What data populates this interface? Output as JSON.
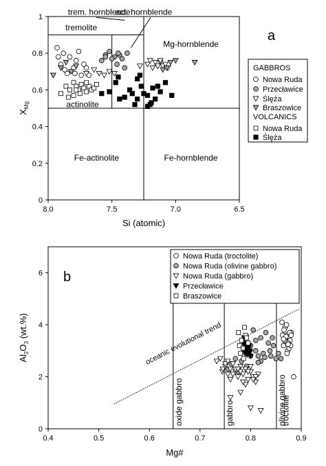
{
  "chart_data": [
    {
      "type": "scatter",
      "panel_label": "a",
      "xlabel": "Si (atomic)",
      "ylabel": "X",
      "ylabel_sub": "Mg",
      "xlim": [
        8.0,
        6.5
      ],
      "ylim": [
        0,
        1
      ],
      "x_ticks": [
        "8.0",
        "7.5",
        "7.0",
        "6.5"
      ],
      "y_ticks": [
        "0",
        "0.2",
        "0.4",
        "0.6",
        "0.8",
        "1"
      ],
      "x_tick_values": [
        8.0,
        7.5,
        7.0,
        6.5
      ],
      "y_tick_values": [
        0,
        0.2,
        0.4,
        0.6,
        0.8,
        1
      ],
      "field_lines": [
        {
          "x1": 8.0,
          "y1": 0.5,
          "x2": 6.5,
          "y2": 0.5
        },
        {
          "x1": 7.25,
          "y1": 0.0,
          "x2": 7.25,
          "y2": 1.0
        },
        {
          "x1": 7.5,
          "y1": 0.5,
          "x2": 7.5,
          "y2": 0.9
        },
        {
          "x1": 8.0,
          "y1": 0.9,
          "x2": 7.25,
          "y2": 0.9
        }
      ],
      "annotations": [
        {
          "text": "tremolite",
          "x": 7.74,
          "y": 0.94
        },
        {
          "text": "actinolite",
          "x": 7.73,
          "y": 0.52
        },
        {
          "text": "Mg-hornblende",
          "x": 6.88,
          "y": 0.85
        },
        {
          "text": "Fe-actinolite",
          "x": 7.62,
          "y": 0.23
        },
        {
          "text": "Fe-hornblende",
          "x": 6.88,
          "y": 0.23
        }
      ],
      "callouts": [
        {
          "text": "trem. hornblende",
          "x": 7.6,
          "y": 1.025,
          "to_x": 7.4,
          "to_y": 0.98
        },
        {
          "text": "act. hornblende",
          "x": 7.25,
          "y": 1.025,
          "to_x": 7.35,
          "to_y": 0.83
        }
      ],
      "legend": {
        "title1": "GABBROS",
        "title2": "VOLCANICS",
        "entries": [
          {
            "label": "Nowa Ruda",
            "marker": "circle-open"
          },
          {
            "label": "Przecławice",
            "marker": "circle-gray"
          },
          {
            "label": "Ślęża",
            "marker": "triangle-open"
          },
          {
            "label": "Braszowice",
            "marker": "triangle-gray"
          },
          {
            "label": "Nowa Ruda",
            "marker": "square-open"
          },
          {
            "label": "Ślęża",
            "marker": "square-filled"
          }
        ]
      },
      "series": [
        {
          "name": "Nowa Ruda",
          "marker": "circle-open",
          "x": [
            7.93,
            7.92,
            7.9,
            7.88,
            7.87,
            7.85,
            7.83,
            7.8,
            7.79,
            7.78,
            7.76,
            7.74,
            7.72,
            7.7,
            7.68
          ],
          "y": [
            0.83,
            0.78,
            0.74,
            0.8,
            0.71,
            0.69,
            0.78,
            0.72,
            0.69,
            0.76,
            0.81,
            0.68,
            0.74,
            0.72,
            0.68
          ]
        },
        {
          "name": "Przecławice",
          "marker": "circle-gray",
          "x": [
            7.58,
            7.55,
            7.52,
            7.48,
            7.46,
            7.44,
            7.42,
            7.4,
            7.38,
            7.45,
            7.5,
            7.55
          ],
          "y": [
            0.76,
            0.79,
            0.81,
            0.78,
            0.74,
            0.79,
            0.77,
            0.72,
            0.8,
            0.8,
            0.77,
            0.78
          ]
        },
        {
          "name": "Ślęża",
          "marker": "triangle-open",
          "x": [
            7.7,
            7.64,
            7.6,
            7.56,
            7.52,
            7.48,
            7.28,
            7.22,
            7.18,
            7.16,
            7.14,
            7.12,
            7.1,
            7.08,
            7.06,
            7.2,
            7.12
          ],
          "y": [
            0.69,
            0.71,
            0.69,
            0.68,
            0.7,
            0.69,
            0.73,
            0.74,
            0.72,
            0.75,
            0.73,
            0.75,
            0.73,
            0.74,
            0.72,
            0.76,
            0.76
          ]
        },
        {
          "name": "Braszowice",
          "marker": "triangle-gray",
          "x": [
            7.96,
            7.9,
            7.86,
            7.82,
            7.78,
            7.1,
            7.07,
            7.04,
            7.0,
            6.85
          ],
          "y": [
            0.68,
            0.72,
            0.75,
            0.7,
            0.73,
            0.71,
            0.72,
            0.75,
            0.76,
            0.75
          ]
        },
        {
          "name": "Nowa Ruda (volcanics)",
          "marker": "square-open",
          "x": [
            7.9,
            7.86,
            7.83,
            7.8,
            7.78,
            7.76,
            7.74,
            7.72,
            7.7,
            7.68,
            7.66,
            7.64,
            7.62,
            7.8,
            7.75,
            7.7,
            7.84,
            7.78
          ],
          "y": [
            0.58,
            0.62,
            0.6,
            0.64,
            0.62,
            0.6,
            0.63,
            0.61,
            0.59,
            0.62,
            0.6,
            0.61,
            0.63,
            0.57,
            0.58,
            0.64,
            0.56,
            0.6
          ]
        },
        {
          "name": "Ślęża (volcanics)",
          "marker": "square-filled",
          "x": [
            7.58,
            7.52,
            7.47,
            7.44,
            7.45,
            7.4,
            7.36,
            7.32,
            7.3,
            7.27,
            7.25,
            7.22,
            7.2,
            7.18,
            7.16,
            7.12,
            7.08,
            7.03,
            7.3,
            7.22,
            7.14,
            7.34,
            7.28,
            7.19
          ],
          "y": [
            0.58,
            0.59,
            0.64,
            0.55,
            0.67,
            0.56,
            0.6,
            0.52,
            0.66,
            0.62,
            0.58,
            0.57,
            0.52,
            0.61,
            0.55,
            0.59,
            0.64,
            0.57,
            0.55,
            0.51,
            0.62,
            0.58,
            0.68,
            0.53
          ]
        }
      ]
    },
    {
      "type": "scatter",
      "panel_label": "b",
      "xlabel": "Mg#",
      "ylabel": "Al",
      "ylabel_sub1": "2",
      "ylabel_mid": "O",
      "ylabel_sub2": "3",
      "ylabel_end": " (wt.%)",
      "xlim": [
        0.4,
        0.9
      ],
      "ylim": [
        0,
        7
      ],
      "x_ticks": [
        "0.4",
        "0.5",
        "0.6",
        "0.7",
        "0.8",
        "0.9"
      ],
      "y_ticks": [
        "0",
        "2",
        "4",
        "6"
      ],
      "x_tick_values": [
        0.4,
        0.5,
        0.6,
        0.7,
        0.8,
        0.9
      ],
      "y_tick_values": [
        0,
        2,
        4,
        6
      ],
      "trend_line": {
        "label": "oceanic evolutional trend",
        "x1": 0.53,
        "y1": 0.95,
        "x2": 0.895,
        "y2": 4.6
      },
      "divider_lines": [
        {
          "x": 0.647,
          "label": "oxide gabbro"
        },
        {
          "x": 0.748,
          "label": "gabbro"
        },
        {
          "x": 0.851,
          "label": "olivine gabbro"
        }
      ],
      "extra_label": "troctolite",
      "legend": {
        "entries": [
          {
            "label": "Nowa Ruda (troctolite)",
            "marker": "circle-open"
          },
          {
            "label": "Nowa Ruda (olivine gabbro)",
            "marker": "circle-gray"
          },
          {
            "label": "Nowa Ruda (gabbro)",
            "marker": "triangle-open"
          },
          {
            "label": "Przecławice",
            "marker": "triangle-filled"
          },
          {
            "label": "Braszowice",
            "marker": "square-open"
          }
        ]
      },
      "series": [
        {
          "name": "Nowa Ruda (troctolite)",
          "marker": "circle-open",
          "x": [
            0.862,
            0.868,
            0.872,
            0.875,
            0.87,
            0.865,
            0.878,
            0.88,
            0.873,
            0.866,
            0.871,
            0.876,
            0.869,
            0.874,
            0.863,
            0.879,
            0.867,
            0.872,
            0.877,
            0.87,
            0.865,
            0.874,
            0.88,
            0.885
          ],
          "y": [
            4.1,
            3.9,
            3.6,
            3.5,
            3.3,
            3.2,
            3.4,
            3.7,
            3.0,
            3.8,
            4.0,
            3.1,
            3.5,
            3.3,
            3.6,
            3.2,
            3.4,
            2.9,
            3.7,
            3.55,
            3.45,
            3.25,
            3.6,
            2.0
          ]
        },
        {
          "name": "Nowa Ruda (olivine gabbro)",
          "marker": "circle-gray",
          "x": [
            0.755,
            0.762,
            0.77,
            0.782,
            0.79,
            0.8,
            0.805,
            0.81,
            0.815,
            0.82,
            0.825,
            0.83,
            0.835,
            0.84,
            0.845,
            0.85,
            0.855,
            0.86,
            0.82,
            0.81,
            0.8,
            0.838,
            0.828,
            0.815,
            0.843,
            0.792,
            0.776
          ],
          "y": [
            2.3,
            2.5,
            2.7,
            2.6,
            2.9,
            3.2,
            3.8,
            3.0,
            2.8,
            3.5,
            2.9,
            3.7,
            3.3,
            2.8,
            3.2,
            2.7,
            2.9,
            2.7,
            2.6,
            3.4,
            2.8,
            3.0,
            2.75,
            2.55,
            3.5,
            2.4,
            2.2
          ]
        },
        {
          "name": "Nowa Ruda (gabbro)",
          "marker": "triangle-open",
          "x": [
            0.733,
            0.74,
            0.744,
            0.75,
            0.755,
            0.76,
            0.765,
            0.77,
            0.775,
            0.78,
            0.785,
            0.79,
            0.795,
            0.8,
            0.805,
            0.81,
            0.815,
            0.75,
            0.76,
            0.77,
            0.78,
            0.79,
            0.8,
            0.81,
            0.745,
            0.755,
            0.765,
            0.775,
            0.785,
            0.795,
            0.805,
            0.76,
            0.78,
            0.8,
            0.82
          ],
          "y": [
            2.6,
            2.7,
            2.2,
            2.4,
            2.1,
            2.3,
            2.5,
            2.2,
            2.0,
            2.4,
            2.1,
            2.3,
            1.9,
            2.2,
            2.0,
            1.8,
            2.1,
            2.5,
            1.9,
            2.3,
            2.2,
            1.7,
            2.4,
            2.0,
            2.3,
            2.6,
            2.1,
            2.3,
            1.8,
            2.2,
            1.9,
            1.2,
            1.4,
            0.8,
            0.7
          ]
        },
        {
          "name": "Przecławice",
          "marker": "triangle-filled",
          "x": [
            0.784,
            0.786,
            0.788,
            0.79,
            0.792,
            0.794,
            0.796,
            0.798,
            0.8,
            0.787,
            0.791,
            0.795,
            0.789,
            0.793,
            0.797,
            0.785,
            0.799
          ],
          "y": [
            3.4,
            3.3,
            3.2,
            3.1,
            3.0,
            2.9,
            3.2,
            3.0,
            2.8,
            3.5,
            3.3,
            3.1,
            2.95,
            2.85,
            3.15,
            3.05,
            2.95
          ]
        },
        {
          "name": "Braszowice",
          "marker": "square-open",
          "x": [
            0.788,
            0.79,
            0.782,
            0.778,
            0.785,
            0.792,
            0.795,
            0.78,
            0.786,
            0.776
          ],
          "y": [
            3.9,
            3.6,
            3.4,
            3.2,
            3.1,
            3.5,
            3.3,
            2.9,
            2.7,
            3.7
          ]
        }
      ]
    }
  ]
}
